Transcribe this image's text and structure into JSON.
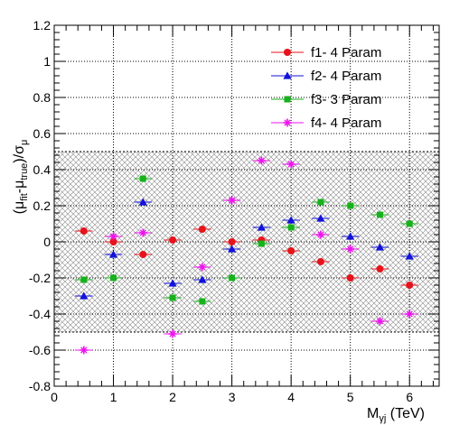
{
  "chart_data": {
    "type": "scatter",
    "xlabel": {
      "main": "M",
      "sub": "γj",
      "unit": " (TeV)"
    },
    "ylabel": {
      "open": "(μ",
      "sub1": "fit",
      "mid": "-μ",
      "sub2": "true",
      "close": ")/σ",
      "sub3": "μ"
    },
    "xlim": [
      0,
      6.5
    ],
    "ylim": [
      -0.8,
      1.2
    ],
    "xticks": [
      0,
      1,
      2,
      3,
      4,
      5,
      6
    ],
    "yticks": [
      -0.8,
      -0.6,
      -0.4,
      -0.2,
      0,
      0.2,
      0.4,
      0.6,
      0.8,
      1,
      1.2
    ],
    "grid": true,
    "band": {
      "low": -0.5,
      "high": 0.5
    },
    "legend_position": "top-right",
    "series": [
      {
        "name": "f1- 4 Param",
        "color": "#e8121a",
        "marker": "circle",
        "points": [
          [
            0.5,
            0.06
          ],
          [
            1.0,
            0.0
          ],
          [
            1.5,
            -0.07
          ],
          [
            2.0,
            0.01
          ],
          [
            2.5,
            0.07
          ],
          [
            3.0,
            0.0
          ],
          [
            3.5,
            0.01
          ],
          [
            4.0,
            -0.05
          ],
          [
            4.5,
            -0.11
          ],
          [
            5.0,
            -0.2
          ],
          [
            5.5,
            -0.15
          ],
          [
            6.0,
            -0.24
          ]
        ]
      },
      {
        "name": "f2- 4 Param",
        "color": "#1212d9",
        "marker": "triangle",
        "points": [
          [
            0.5,
            -0.3
          ],
          [
            1.0,
            -0.07
          ],
          [
            1.5,
            0.22
          ],
          [
            2.0,
            -0.23
          ],
          [
            2.5,
            -0.21
          ],
          [
            3.0,
            -0.04
          ],
          [
            3.5,
            0.08
          ],
          [
            4.0,
            0.12
          ],
          [
            4.5,
            0.13
          ],
          [
            5.0,
            0.03
          ],
          [
            5.5,
            -0.03
          ],
          [
            6.0,
            -0.08
          ]
        ]
      },
      {
        "name": "f3- 3 Param",
        "color": "#16b21b",
        "marker": "square",
        "points": [
          [
            0.5,
            -0.21
          ],
          [
            1.0,
            -0.2
          ],
          [
            1.5,
            0.35
          ],
          [
            2.0,
            -0.31
          ],
          [
            2.5,
            -0.33
          ],
          [
            3.0,
            -0.2
          ],
          [
            3.5,
            -0.01
          ],
          [
            4.0,
            0.08
          ],
          [
            4.5,
            0.22
          ],
          [
            5.0,
            0.2
          ],
          [
            5.5,
            0.15
          ],
          [
            6.0,
            0.1
          ]
        ]
      },
      {
        "name": "f4- 4 Param",
        "color": "#ee12ee",
        "marker": "star",
        "points": [
          [
            0.5,
            -0.6
          ],
          [
            1.0,
            0.03
          ],
          [
            1.5,
            0.05
          ],
          [
            2.0,
            -0.51
          ],
          [
            2.5,
            -0.14
          ],
          [
            3.0,
            0.23
          ],
          [
            3.5,
            0.45
          ],
          [
            4.0,
            0.43
          ],
          [
            4.5,
            0.04
          ],
          [
            5.0,
            -0.04
          ],
          [
            5.5,
            -0.44
          ],
          [
            6.0,
            -0.4
          ]
        ]
      }
    ],
    "x_error_halfwidth": 0.15
  }
}
